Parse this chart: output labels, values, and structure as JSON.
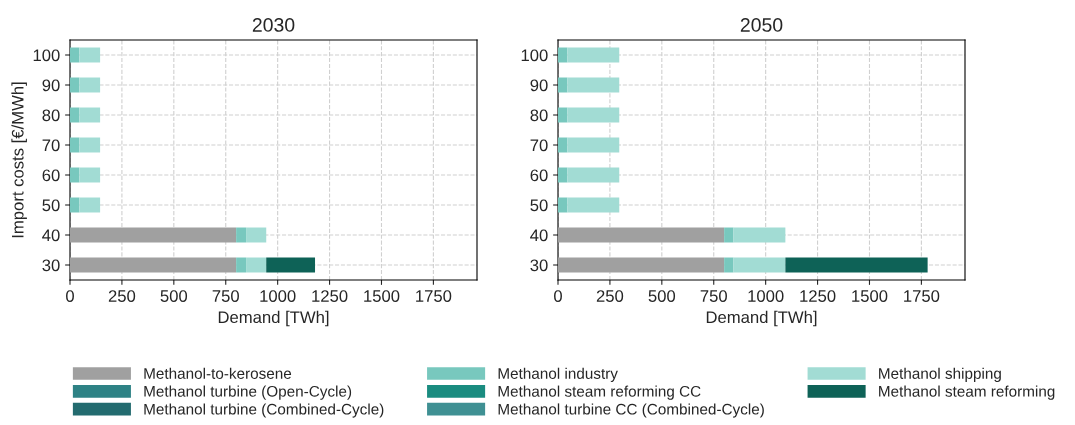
{
  "chart_data": [
    {
      "type": "bar",
      "title": "2030",
      "xlabel": "Demand [TWh]",
      "ylabel": "Import costs [€/MWh]",
      "orientation": "horizontal",
      "stacked": true,
      "categories": [
        "100",
        "90",
        "80",
        "70",
        "60",
        "50",
        "40",
        "30"
      ],
      "xlim": [
        0,
        1960
      ],
      "xticks": [
        0,
        250,
        500,
        750,
        1000,
        1250,
        1500,
        1750
      ],
      "grid": true,
      "legend": "bottom",
      "series": [
        {
          "name": "Methanol-to-kerosene",
          "color": "#a0a0a0",
          "values": [
            0,
            0,
            0,
            0,
            0,
            0,
            800,
            800
          ]
        },
        {
          "name": "Methanol turbine (Open-Cycle)",
          "color": "#2e8285",
          "values": [
            0,
            0,
            0,
            0,
            0,
            0,
            0,
            0
          ]
        },
        {
          "name": "Methanol turbine (Combined-Cycle)",
          "color": "#236b6f",
          "values": [
            0,
            0,
            0,
            0,
            0,
            0,
            0,
            0
          ]
        },
        {
          "name": "Methanol industry",
          "color": "#78c8be",
          "values": [
            45,
            45,
            45,
            45,
            45,
            45,
            48,
            48
          ]
        },
        {
          "name": "Methanol steam reforming CC",
          "color": "#1a8c80",
          "values": [
            0,
            0,
            0,
            0,
            0,
            0,
            0,
            0
          ]
        },
        {
          "name": "Methanol turbine CC (Combined-Cycle)",
          "color": "#3f9093",
          "values": [
            0,
            0,
            0,
            0,
            0,
            0,
            0,
            0
          ]
        },
        {
          "name": "Methanol shipping",
          "color": "#a2dcd4",
          "values": [
            100,
            100,
            100,
            100,
            100,
            100,
            97,
            97
          ]
        },
        {
          "name": "Methanol steam reforming",
          "color": "#0e6257",
          "values": [
            0,
            0,
            0,
            0,
            0,
            0,
            0,
            235
          ]
        }
      ]
    },
    {
      "type": "bar",
      "title": "2050",
      "xlabel": "Demand [TWh]",
      "orientation": "horizontal",
      "stacked": true,
      "categories": [
        "100",
        "90",
        "80",
        "70",
        "60",
        "50",
        "40",
        "30"
      ],
      "xlim": [
        0,
        1960
      ],
      "xticks": [
        0,
        250,
        500,
        750,
        1000,
        1250,
        1500,
        1750
      ],
      "grid": true,
      "series": [
        {
          "color": "#a0a0a0",
          "values": [
            0,
            0,
            0,
            0,
            0,
            0,
            800,
            800
          ]
        },
        {
          "color": "#2e8285",
          "values": [
            0,
            0,
            0,
            0,
            0,
            0,
            0,
            0
          ]
        },
        {
          "color": "#236b6f",
          "values": [
            0,
            0,
            0,
            0,
            0,
            0,
            0,
            0
          ]
        },
        {
          "color": "#78c8be",
          "values": [
            45,
            45,
            45,
            45,
            45,
            45,
            45,
            45
          ]
        },
        {
          "color": "#1a8c80",
          "values": [
            0,
            0,
            0,
            0,
            0,
            0,
            0,
            0
          ]
        },
        {
          "color": "#3f9093",
          "values": [
            0,
            0,
            0,
            0,
            0,
            0,
            0,
            0
          ]
        },
        {
          "color": "#a2dcd4",
          "values": [
            250,
            250,
            250,
            250,
            250,
            250,
            250,
            250
          ]
        },
        {
          "color": "#0e6257",
          "values": [
            0,
            0,
            0,
            0,
            0,
            0,
            0,
            685
          ]
        }
      ]
    }
  ]
}
